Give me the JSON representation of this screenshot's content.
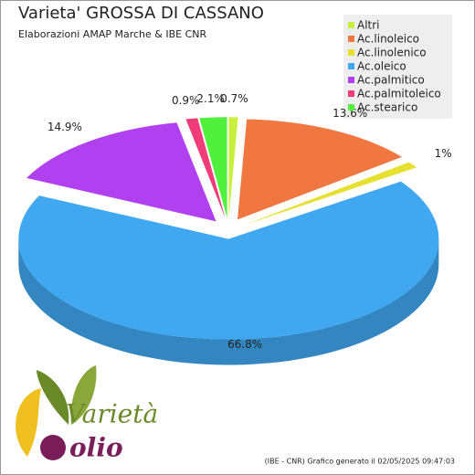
{
  "chart_data": {
    "type": "pie3d",
    "title": "Varieta' GROSSA DI CASSANO",
    "subtitle": "Elaborazioni AMAP Marche & IBE CNR",
    "categories": [
      "Altri",
      "Ac.linoleico",
      "Ac.linolenico",
      "Ac.oleico",
      "Ac.palmitico",
      "Ac.palmitoleico",
      "Ac.stearico"
    ],
    "values": [
      0.7,
      13.6,
      1,
      66.8,
      14.9,
      0.9,
      2.1
    ],
    "value_labels": [
      "0.7%",
      "13.6%",
      "1%",
      "66.8%",
      "14.9%",
      "0.9%",
      "2.1%"
    ],
    "colors": [
      "#c8f03c",
      "#f07840",
      "#e8e030",
      "#40a8f0",
      "#b040f0",
      "#f03c78",
      "#50f03c"
    ],
    "legend": "top-right",
    "footer": "(IBE - CNR) Grafico generato il 02/05/2025 09:47:03",
    "logo": [
      "Varietà",
      "olio"
    ]
  }
}
